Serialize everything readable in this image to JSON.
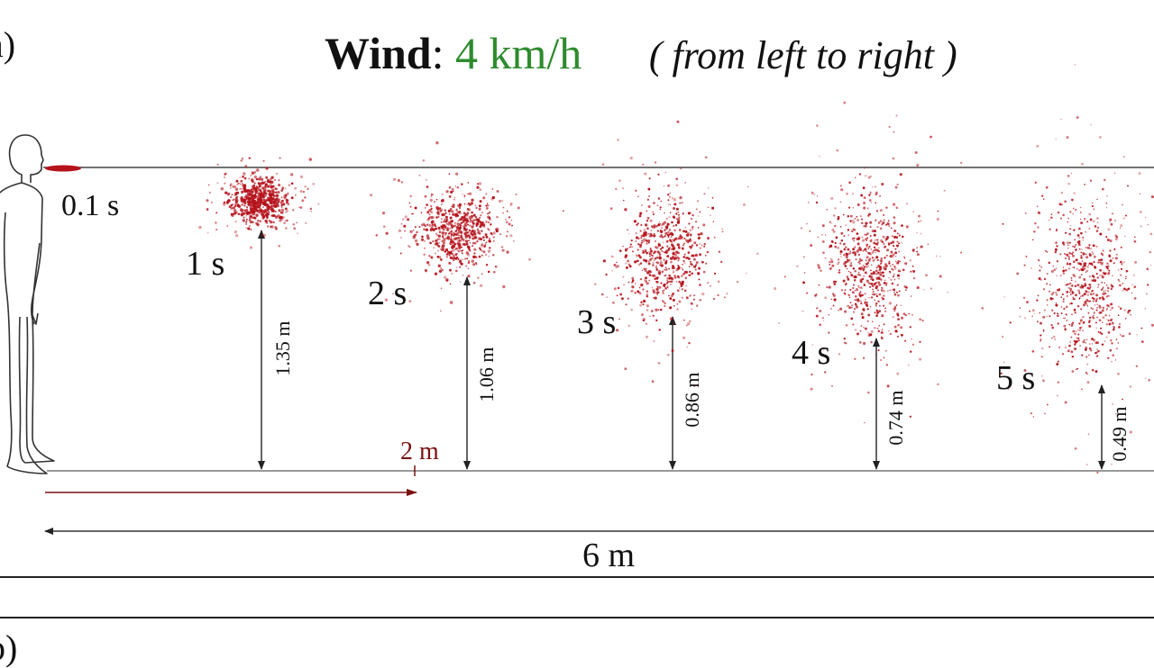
{
  "panel_a_label": "a)",
  "panel_b_label": "b)",
  "title": {
    "label": "Wind",
    "separator": ":",
    "value": "4 km/h",
    "note": "( from left to right )"
  },
  "emission_time": "0.1 s",
  "snapshots": [
    {
      "time": "1 s",
      "height": "1.35 m",
      "height_m": 1.35
    },
    {
      "time": "2 s",
      "height": "1.06 m",
      "height_m": 1.06
    },
    {
      "time": "3 s",
      "height": "0.86 m",
      "height_m": 0.86
    },
    {
      "time": "4 s",
      "height": "0.74 m",
      "height_m": 0.74
    },
    {
      "time": "5 s",
      "height": "0.49 m",
      "height_m": 0.49
    }
  ],
  "markers": {
    "two_m": "2 m",
    "six_m": "6 m"
  },
  "colors": {
    "cloud": "#b5121b",
    "wind_value": "#2e8b2e",
    "arrow_2m": "#7a1010"
  }
}
